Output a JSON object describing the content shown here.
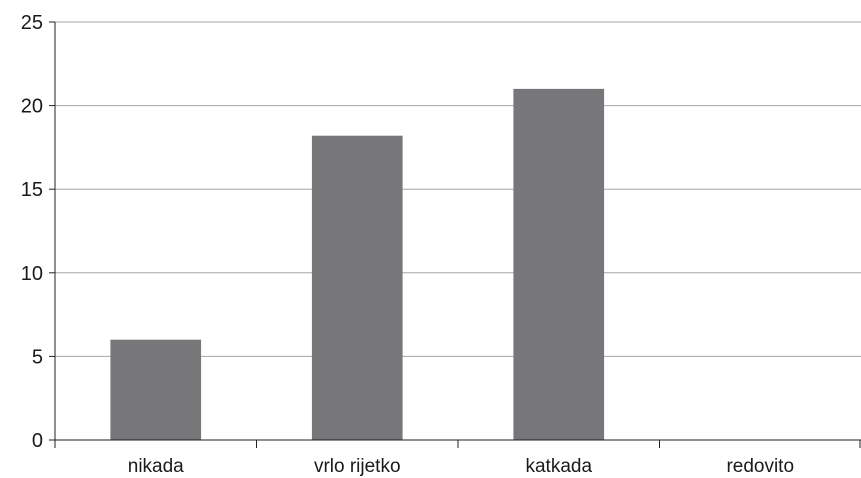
{
  "chart_data": {
    "type": "bar",
    "title": "",
    "xlabel": "",
    "ylabel": "",
    "categories": [
      "nikada",
      "vrlo rijetko",
      "katkada",
      "redovito"
    ],
    "values": [
      6,
      18.2,
      21,
      0
    ],
    "ylim": [
      0,
      25
    ],
    "yticks": [
      0,
      5,
      10,
      15,
      20,
      25
    ],
    "grid": true,
    "legend": "none",
    "colors": {
      "bar": "#77777a",
      "grid": "#a6a6a6",
      "axis": "#222222"
    }
  }
}
